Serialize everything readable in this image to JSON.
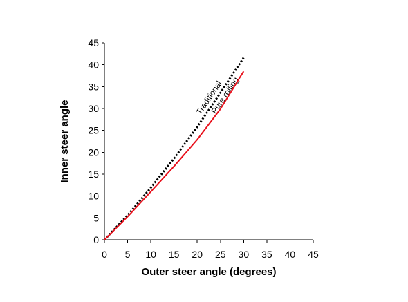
{
  "chart_data": {
    "type": "line",
    "title": "",
    "xlabel": "Outer steer angle (degrees)",
    "ylabel": "Inner steer angle",
    "xlim": [
      0,
      45
    ],
    "ylim": [
      0,
      45
    ],
    "xticks": [
      0,
      5,
      10,
      15,
      20,
      25,
      30,
      35,
      40,
      45
    ],
    "yticks": [
      0,
      5,
      10,
      15,
      20,
      25,
      30,
      35,
      40,
      45
    ],
    "grid": false,
    "legend": "none",
    "series": [
      {
        "name": "Pure rolling",
        "color": "#000000",
        "style": "dotted",
        "x": [
          0,
          5,
          10,
          15,
          20,
          25,
          30
        ],
        "y": [
          0,
          5.6,
          11.9,
          18.6,
          25.8,
          33.6,
          41.6
        ]
      },
      {
        "name": "Traditional",
        "color": "#e8101b",
        "style": "solid",
        "x": [
          0,
          5,
          10,
          15,
          20,
          25,
          30
        ],
        "y": [
          0,
          5.3,
          11.0,
          16.8,
          22.9,
          29.9,
          38.5
        ]
      }
    ]
  }
}
